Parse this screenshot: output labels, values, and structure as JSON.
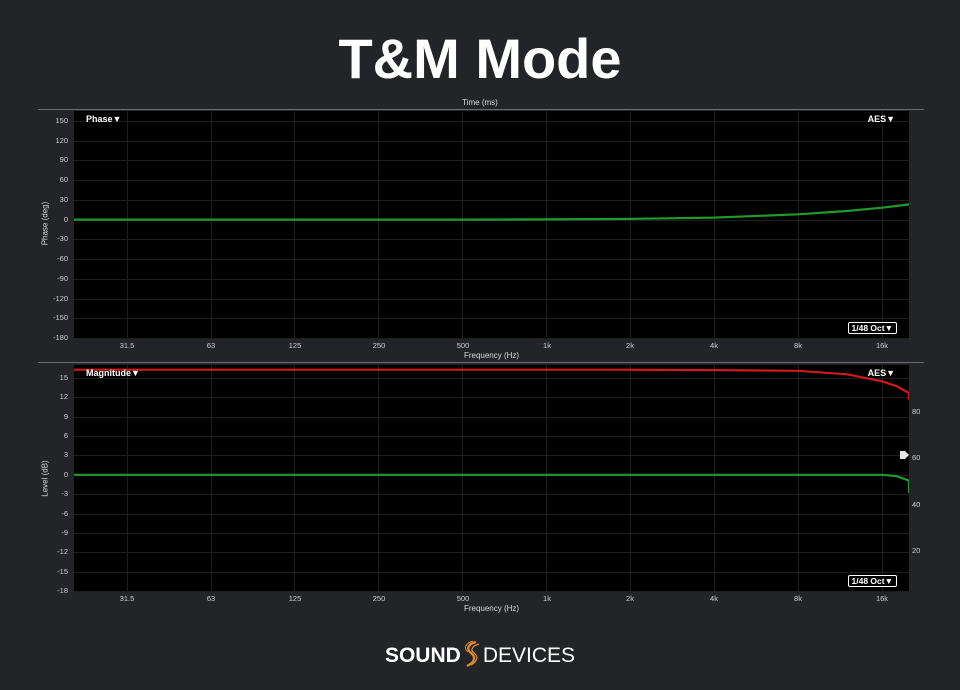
{
  "page": {
    "title": "T&M Mode"
  },
  "top_plot": {
    "time_axis_label": "Time (ms)",
    "menu_left": "Phase▼",
    "menu_right": "AES▼",
    "resolution": "1/48 Oct▼",
    "ylabel": "Phase (deg)",
    "yticks": [
      "150",
      "120",
      "90",
      "60",
      "30",
      "0",
      "-30",
      "-60",
      "-90",
      "-120",
      "-150",
      "-180"
    ],
    "xticks": [
      "31.5",
      "63",
      "125",
      "250",
      "500",
      "1k",
      "2k",
      "4k",
      "8k",
      "16k"
    ],
    "xlabel": "Frequency (Hz)"
  },
  "bottom_plot": {
    "menu_left": "Magnitude▼",
    "menu_right": "AES▼",
    "resolution": "1/48 Oct▼",
    "ylabel": "Level (dB)",
    "yticks": [
      "15",
      "12",
      "9",
      "6",
      "3",
      "0",
      "-3",
      "-6",
      "-9",
      "-12",
      "-15",
      "-18"
    ],
    "yticks_right": [
      "80",
      "60",
      "40",
      "20"
    ],
    "xticks": [
      "31.5",
      "63",
      "125",
      "250",
      "500",
      "1k",
      "2k",
      "4k",
      "8k",
      "16k"
    ],
    "xlabel": "Frequency (Hz)"
  },
  "colors": {
    "trace_green": "#1f9a2b",
    "trace_red": "#d0191c",
    "background": "#232427",
    "plot_background": "#000000"
  },
  "logo": {
    "part1": "SOUND",
    "part2": "DEVICES",
    "icon": "sound-devices-s-icon"
  },
  "chart_data": [
    {
      "type": "line",
      "title": "",
      "xlabel": "Frequency (Hz)",
      "ylabel": "Phase (deg)",
      "x_scale": "log",
      "xlim": [
        20,
        22000
      ],
      "ylim": [
        -180,
        165
      ],
      "grid": true,
      "x": [
        20,
        31.5,
        63,
        125,
        250,
        500,
        1000,
        2000,
        4000,
        8000,
        12000,
        16000,
        20000,
        22000
      ],
      "series": [
        {
          "values": [
            0,
            0,
            0,
            0,
            0,
            0,
            0.3,
            1,
            3,
            8,
            13,
            18,
            23,
            25
          ]
        }
      ]
    },
    {
      "type": "line",
      "title": "",
      "xlabel": "Frequency (Hz)",
      "ylabel": "Level (dB)",
      "x_scale": "log",
      "xlim": [
        20,
        22000
      ],
      "ylim": [
        -18,
        17
      ],
      "grid": true,
      "x": [
        20,
        31.5,
        63,
        125,
        250,
        500,
        1000,
        2000,
        4000,
        8000,
        12000,
        16000,
        18000,
        20000,
        22000
      ],
      "series": [
        {
          "values": [
            0,
            0,
            0,
            0,
            0,
            0,
            0,
            0,
            0,
            0,
            0,
            0,
            -0.2,
            -0.9,
            -2.8
          ]
        },
        {
          "values": [
            98,
            98,
            98,
            98,
            98,
            98,
            98,
            98,
            97.8,
            97.5,
            96,
            93,
            91,
            88,
            85
          ]
        }
      ],
      "right_axis_ylim": [
        3,
        100
      ]
    }
  ]
}
